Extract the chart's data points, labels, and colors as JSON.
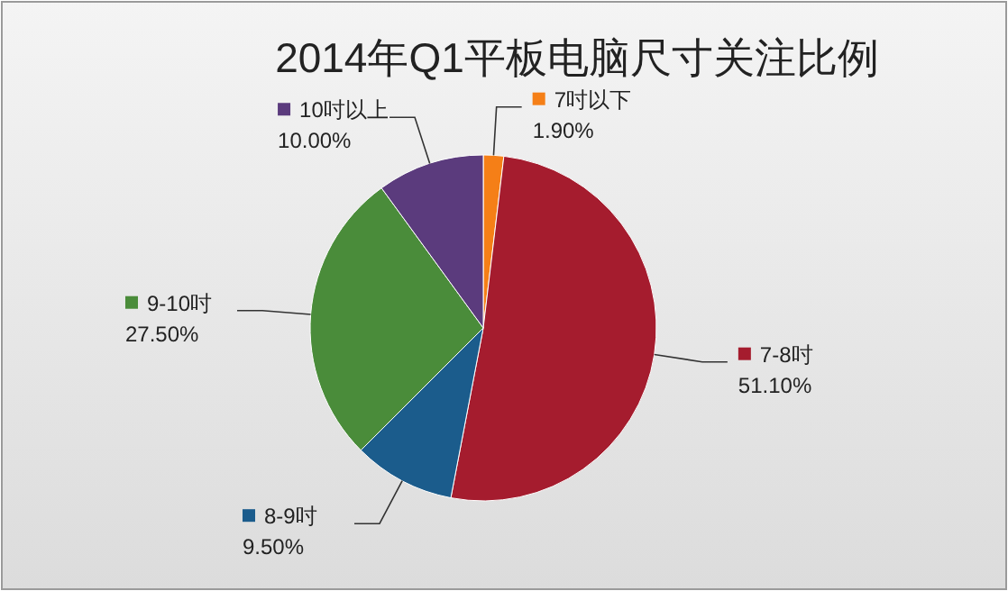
{
  "chart_data": {
    "type": "pie",
    "title": "2014年Q1平板电脑尺寸关注比例",
    "categories": [
      "7吋以下",
      "7-8吋",
      "8-9吋",
      "9-10吋",
      "10吋以上"
    ],
    "values": [
      1.9,
      51.1,
      9.5,
      27.5,
      10.0
    ],
    "colors": [
      "#f57f17",
      "#a51c2e",
      "#1b5c8c",
      "#4a8c3a",
      "#5b3b7d"
    ],
    "value_labels": [
      "1.90%",
      "51.10%",
      "9.50%",
      "27.50%",
      "10.00%"
    ],
    "legend": "left"
  }
}
